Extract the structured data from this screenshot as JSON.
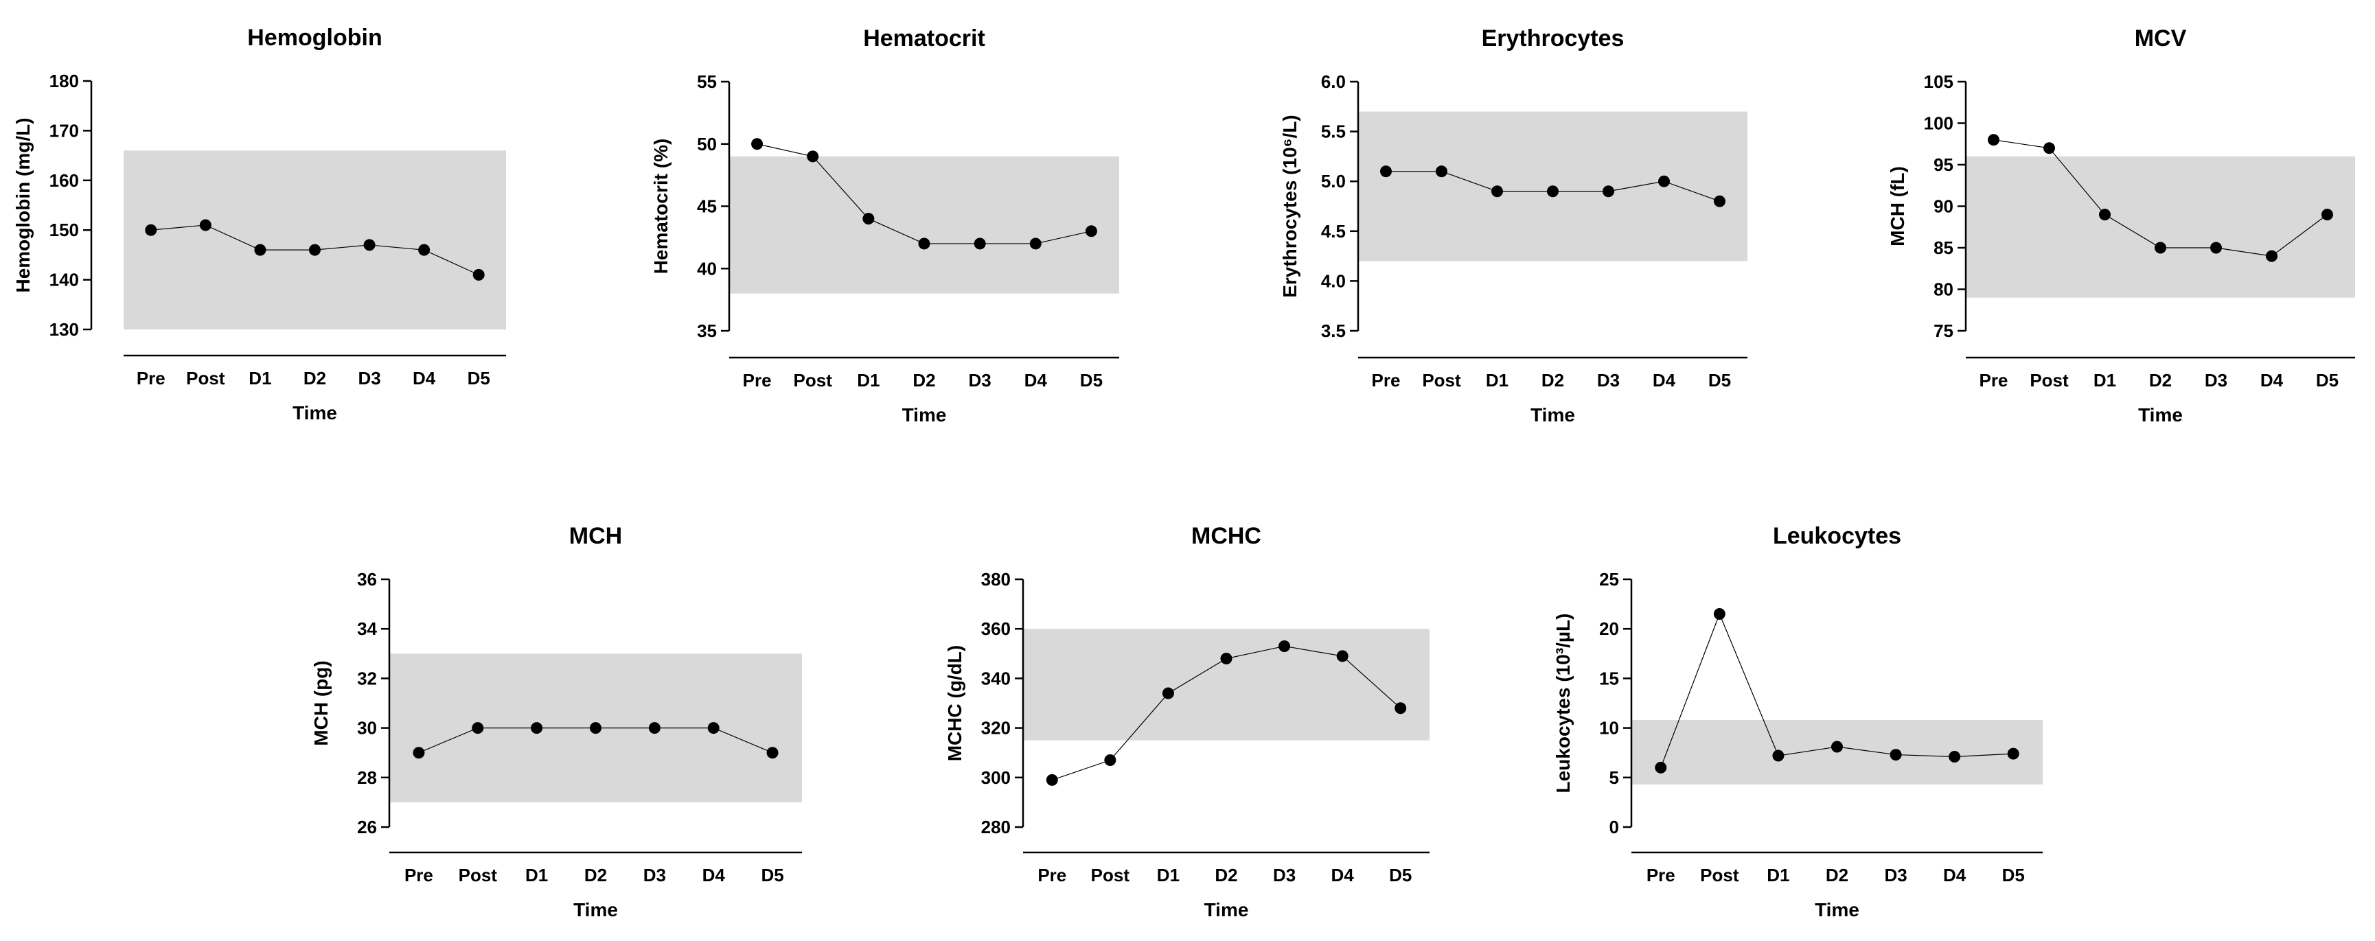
{
  "chart_data": [
    {
      "type": "line",
      "title": "Hemoglobin",
      "ylabel": "Hemoglobin (mg/L)",
      "xlabel": "Time",
      "categories": [
        "Pre",
        "Post",
        "D1",
        "D2",
        "D3",
        "D4",
        "D5"
      ],
      "values": [
        150,
        151,
        146,
        146,
        147,
        146,
        141
      ],
      "ylim": [
        130,
        180
      ],
      "yticks": [
        130,
        140,
        150,
        160,
        170,
        180
      ],
      "ytick_labels": [
        "130",
        "140",
        "150",
        "160",
        "170",
        "180"
      ],
      "reference_range": [
        130,
        166
      ]
    },
    {
      "type": "line",
      "title": "Hematocrit",
      "ylabel": "Hematocrit (%)",
      "xlabel": "Time",
      "categories": [
        "Pre",
        "Post",
        "D1",
        "D2",
        "D3",
        "D4",
        "D5"
      ],
      "values": [
        50,
        49,
        44,
        42,
        42,
        42,
        43
      ],
      "ylim": [
        35,
        55
      ],
      "yticks": [
        35,
        40,
        45,
        50,
        55
      ],
      "ytick_labels": [
        "35",
        "40",
        "45",
        "50",
        "55"
      ],
      "reference_range": [
        38,
        49
      ]
    },
    {
      "type": "line",
      "title": "Erythrocytes",
      "ylabel": "Erythrocytes (10⁶/L)",
      "xlabel": "Time",
      "categories": [
        "Pre",
        "Post",
        "D1",
        "D2",
        "D3",
        "D4",
        "D5"
      ],
      "values": [
        5.1,
        5.1,
        4.9,
        4.9,
        4.9,
        5.0,
        4.8
      ],
      "ylim": [
        3.5,
        6.0
      ],
      "yticks": [
        3.5,
        4.0,
        4.5,
        5.0,
        5.5,
        6.0
      ],
      "ytick_labels": [
        "3.5",
        "4.0",
        "4.5",
        "5.0",
        "5.5",
        "6.0"
      ],
      "reference_range": [
        4.2,
        5.7
      ]
    },
    {
      "type": "line",
      "title": "MCV",
      "ylabel": "MCH (fL)",
      "xlabel": "Time",
      "categories": [
        "Pre",
        "Post",
        "D1",
        "D2",
        "D3",
        "D4",
        "D5"
      ],
      "values": [
        98,
        97,
        89,
        85,
        85,
        84,
        89
      ],
      "ylim": [
        75,
        105
      ],
      "yticks": [
        75,
        80,
        85,
        90,
        95,
        100,
        105
      ],
      "ytick_labels": [
        "75",
        "80",
        "85",
        "90",
        "95",
        "100",
        "105"
      ],
      "reference_range": [
        79,
        96
      ]
    },
    {
      "type": "line",
      "title": "MCH",
      "ylabel": "MCH (pg)",
      "xlabel": "Time",
      "categories": [
        "Pre",
        "Post",
        "D1",
        "D2",
        "D3",
        "D4",
        "D5"
      ],
      "values": [
        29,
        30,
        30,
        30,
        30,
        30,
        29
      ],
      "ylim": [
        26,
        36
      ],
      "yticks": [
        26,
        28,
        30,
        32,
        34,
        36
      ],
      "ytick_labels": [
        "26",
        "28",
        "30",
        "32",
        "34",
        "36"
      ],
      "reference_range": [
        27,
        33
      ]
    },
    {
      "type": "line",
      "title": "MCHC",
      "ylabel": "MCHC (g/dL)",
      "xlabel": "Time",
      "categories": [
        "Pre",
        "Post",
        "D1",
        "D2",
        "D3",
        "D4",
        "D5"
      ],
      "values": [
        299,
        307,
        334,
        348,
        353,
        349,
        328
      ],
      "ylim": [
        280,
        380
      ],
      "yticks": [
        280,
        300,
        320,
        340,
        360,
        380
      ],
      "ytick_labels": [
        "280",
        "300",
        "320",
        "340",
        "360",
        "380"
      ],
      "reference_range": [
        315,
        360
      ]
    },
    {
      "type": "line",
      "title": "Leukocytes",
      "ylabel": "Leukocytes (10³/µL)",
      "xlabel": "Time",
      "categories": [
        "Pre",
        "Post",
        "D1",
        "D2",
        "D3",
        "D4",
        "D5"
      ],
      "values": [
        6,
        21.5,
        7.2,
        8.1,
        7.3,
        7.1,
        7.4
      ],
      "ylim": [
        0,
        25
      ],
      "yticks": [
        0,
        5,
        10,
        15,
        20,
        25
      ],
      "ytick_labels": [
        "0",
        "5",
        "10",
        "15",
        "20",
        "25"
      ],
      "reference_range": [
        4.3,
        10.8
      ]
    }
  ]
}
